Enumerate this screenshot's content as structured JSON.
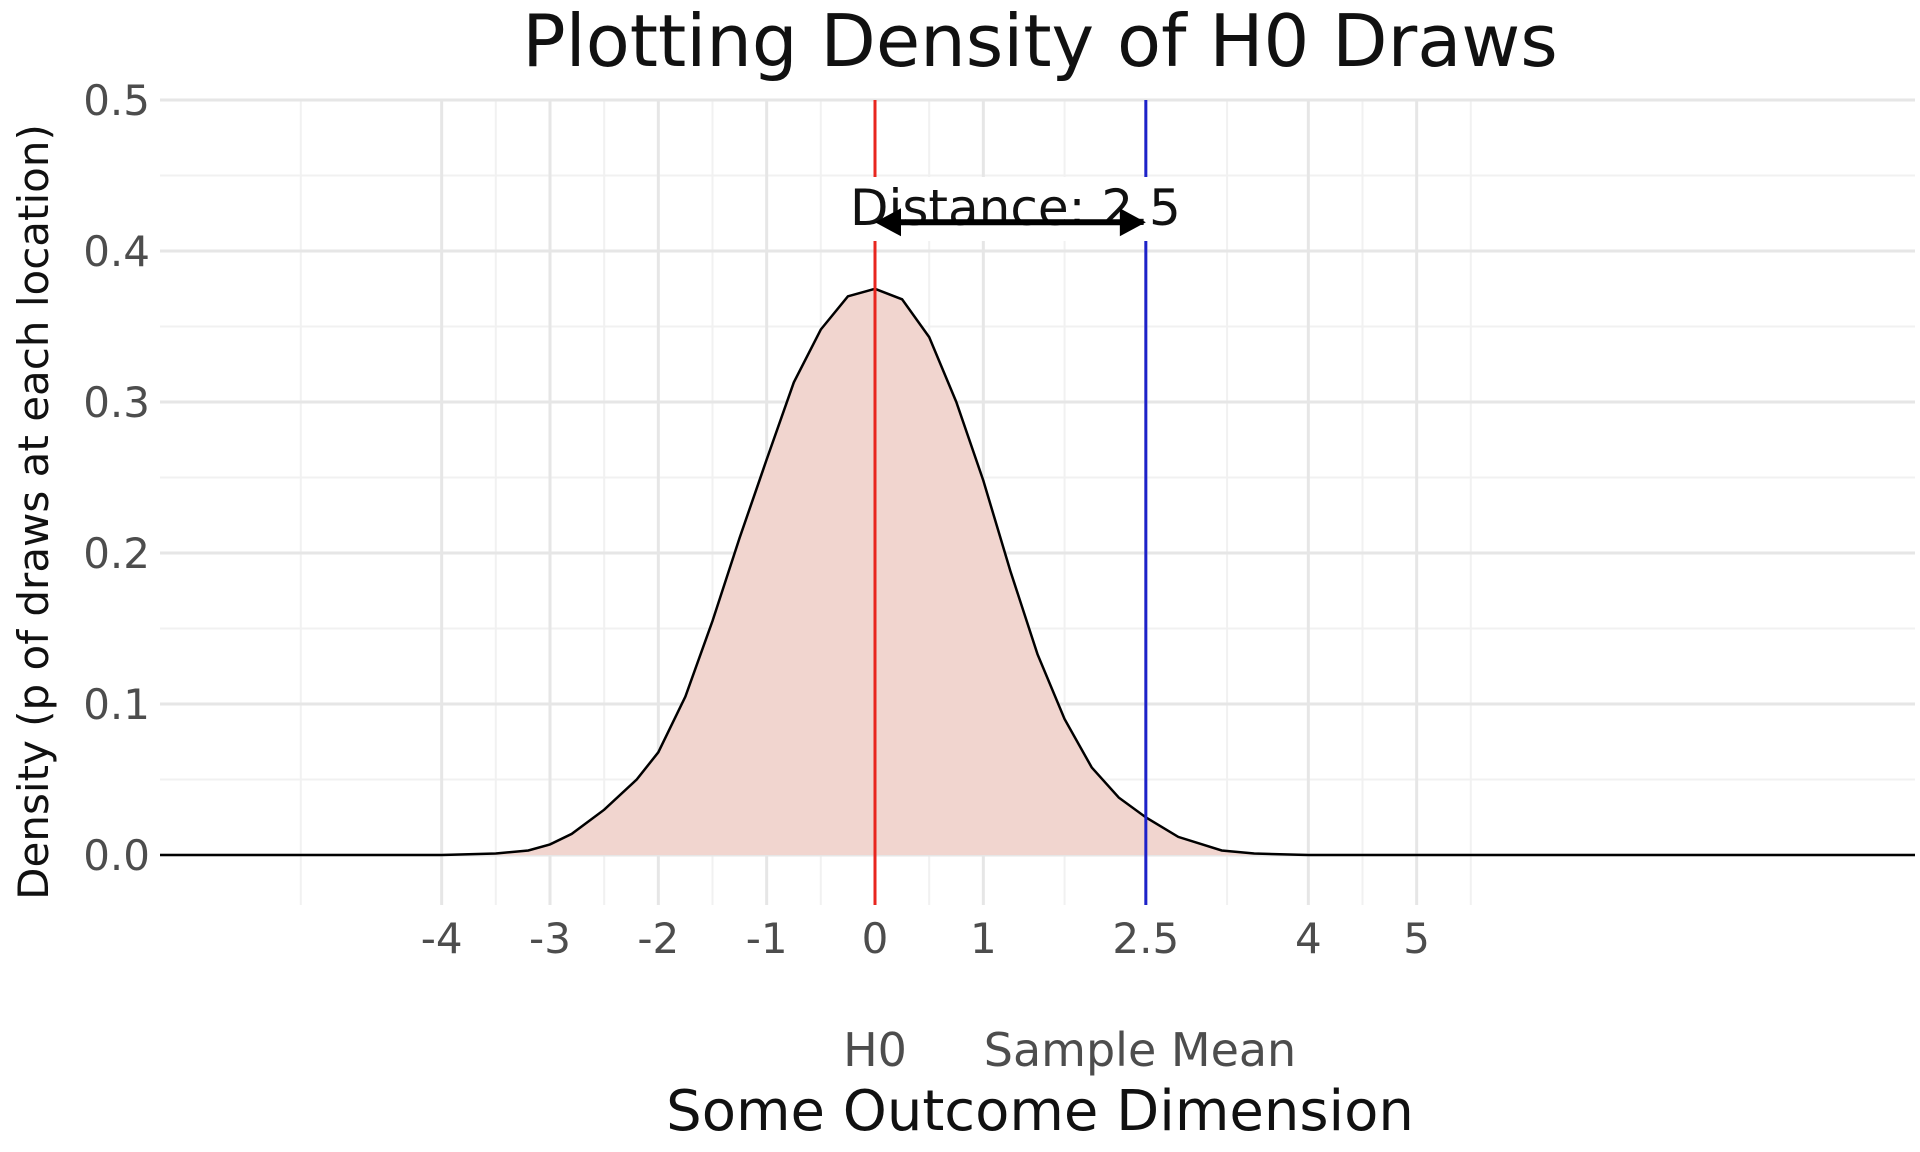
{
  "chart_data": {
    "type": "area",
    "title": "Plotting Density of H0 Draws",
    "xlabel": "Some Outcome Dimension",
    "ylabel": "Density (p of draws at each location)",
    "xlim": [
      -6.6,
      9.6
    ],
    "ylim": [
      0,
      0.5
    ],
    "x_ticks": [
      "-4",
      "-3",
      "-2",
      "-1",
      "0",
      "1",
      "2.5",
      "4",
      "5"
    ],
    "x_tick_values": [
      -4,
      -3,
      -2,
      -1,
      0,
      1,
      2.5,
      4,
      5
    ],
    "y_ticks": [
      "0.0",
      "0.1",
      "0.2",
      "0.3",
      "0.4",
      "0.5"
    ],
    "y_tick_values": [
      0,
      0.1,
      0.2,
      0.3,
      0.4,
      0.5
    ],
    "grid": true,
    "series": [
      {
        "x": [
          -6.6,
          -5,
          -4,
          -3.5,
          -3.2,
          -3,
          -2.8,
          -2.5,
          -2.2,
          -2,
          -1.75,
          -1.5,
          -1.25,
          -1,
          -0.75,
          -0.5,
          -0.25,
          0,
          0.25,
          0.5,
          0.75,
          1,
          1.25,
          1.5,
          1.75,
          2,
          2.25,
          2.5,
          2.8,
          3.2,
          3.5,
          4,
          5,
          7,
          9.6
        ],
        "y": [
          0,
          0,
          0,
          0.001,
          0.003,
          0.007,
          0.014,
          0.03,
          0.05,
          0.068,
          0.105,
          0.155,
          0.21,
          0.262,
          0.313,
          0.348,
          0.37,
          0.375,
          0.368,
          0.343,
          0.3,
          0.248,
          0.188,
          0.133,
          0.09,
          0.058,
          0.038,
          0.025,
          0.012,
          0.003,
          0.001,
          0,
          0,
          0,
          0
        ],
        "fill": "#f1d5cf",
        "line": "#000000"
      }
    ],
    "markers": [
      {
        "label": "H0",
        "x": 0,
        "color": "#e8261f"
      },
      {
        "label": "Sample Mean",
        "x": 2.5,
        "color": "#1d22c9"
      }
    ],
    "annotation": {
      "text": "Distance: 2.5",
      "arrow_from": 0,
      "arrow_to": 2.5,
      "y": 0.419
    }
  }
}
